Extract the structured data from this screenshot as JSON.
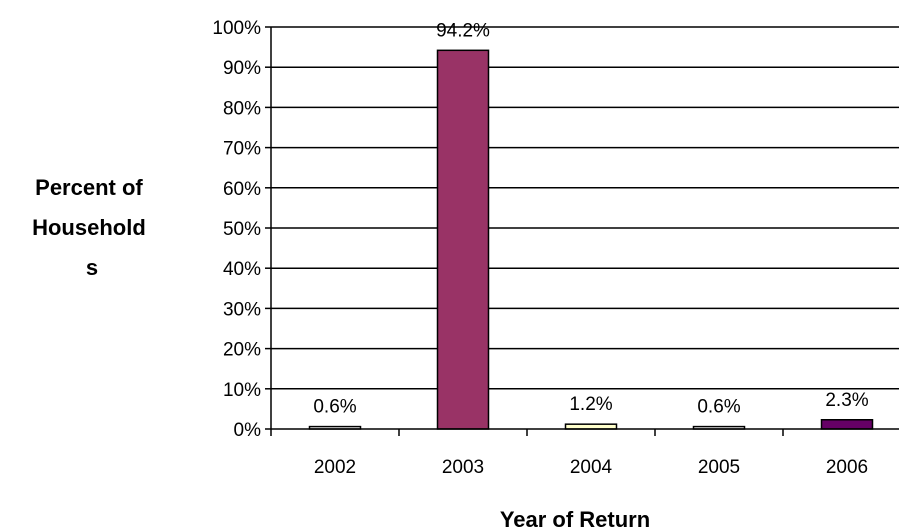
{
  "chart_data": {
    "type": "bar",
    "categories": [
      "2002",
      "2003",
      "2004",
      "2005",
      "2006"
    ],
    "values": [
      0.6,
      94.2,
      1.2,
      0.6,
      2.3
    ],
    "data_labels": [
      "0.6%",
      "94.2%",
      "1.2%",
      "0.6%",
      "2.3%"
    ],
    "bar_colors": [
      "#ffffff",
      "#993366",
      "#ffffcc",
      "#ffffff",
      "#660066"
    ],
    "ylim": [
      0,
      100
    ],
    "yticks": [
      0,
      10,
      20,
      30,
      40,
      50,
      60,
      70,
      80,
      90,
      100
    ],
    "ytick_labels": [
      "0%",
      "10%",
      "20%",
      "30%",
      "40%",
      "50%",
      "60%",
      "70%",
      "80%",
      "90%",
      "100%"
    ],
    "ylabel_lines": [
      "Percent of",
      "Household",
      "s"
    ],
    "xlabel": "Year of Return",
    "grid": true,
    "legend": "none"
  }
}
